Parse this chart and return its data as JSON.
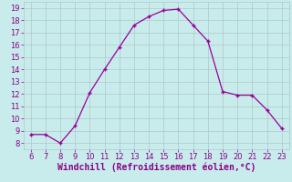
{
  "x": [
    6,
    7,
    8,
    9,
    10,
    11,
    12,
    13,
    14,
    15,
    16,
    17,
    18,
    19,
    20,
    21,
    22,
    23
  ],
  "y": [
    8.7,
    8.7,
    8.0,
    9.4,
    12.1,
    14.0,
    15.8,
    17.6,
    18.3,
    18.8,
    18.9,
    17.6,
    16.3,
    12.2,
    11.9,
    11.9,
    10.7,
    9.2
  ],
  "line_color": "#990099",
  "marker": "+",
  "bg_color": "#c8ecec",
  "grid_color": "#b0c8c8",
  "xlabel": "Windchill (Refroidissement éolien,°C)",
  "xlabel_color": "#880088",
  "xlim_min": 5.5,
  "xlim_max": 23.5,
  "ylim_min": 7.5,
  "ylim_max": 19.5,
  "xticks": [
    6,
    7,
    8,
    9,
    10,
    11,
    12,
    13,
    14,
    15,
    16,
    17,
    18,
    19,
    20,
    21,
    22,
    23
  ],
  "yticks": [
    8,
    9,
    10,
    11,
    12,
    13,
    14,
    15,
    16,
    17,
    18,
    19
  ],
  "tick_color": "#880088",
  "tick_fontsize": 6.0,
  "xlabel_fontsize": 7.0
}
